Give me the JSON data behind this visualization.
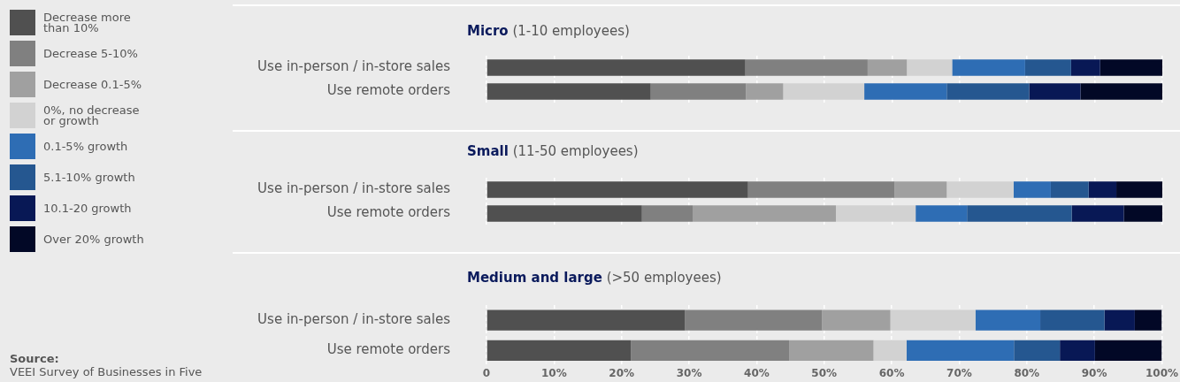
{
  "chart_data": [
    {
      "type": "bar",
      "orientation": "horizontal",
      "stacked": true,
      "title": "Micro",
      "subtitle": "(1-10 employees)",
      "categories": [
        "Use in-person / in-store sales",
        "Use remote orders"
      ],
      "series": [
        {
          "name": "Decrease more than 10%",
          "color": "#505050",
          "values": [
            38.3,
            24.3
          ]
        },
        {
          "name": "Decrease 5-10%",
          "color": "#808080",
          "values": [
            18.1,
            14.1
          ]
        },
        {
          "name": "Decrease 0.1-5%",
          "color": "#a0a0a0",
          "values": [
            5.8,
            5.5
          ]
        },
        {
          "name": "0%, no decrease or growth",
          "color": "#d2d2d2",
          "values": [
            6.7,
            12.0
          ]
        },
        {
          "name": "0.1-5% growth",
          "color": "#2e6db4",
          "values": [
            10.8,
            12.2
          ]
        },
        {
          "name": "5.1-10% growth",
          "color": "#255790",
          "values": [
            6.8,
            12.2
          ]
        },
        {
          "name": "10.1-20 growth",
          "color": "#081855",
          "values": [
            4.3,
            7.6
          ]
        },
        {
          "name": "Over 20% growth",
          "color": "#020826",
          "values": [
            9.2,
            12.1
          ]
        }
      ],
      "xlim": [
        0,
        100
      ],
      "xticks": [
        {
          "value": 0,
          "label": null
        },
        {
          "value": 10,
          "label": null
        },
        {
          "value": 20,
          "label": null
        },
        {
          "value": 30,
          "label": null
        },
        {
          "value": 40,
          "label": null
        },
        {
          "value": 50,
          "label": null
        },
        {
          "value": 60,
          "label": null
        },
        {
          "value": 70,
          "label": null
        },
        {
          "value": 80,
          "label": null
        },
        {
          "value": 90,
          "label": null
        },
        {
          "value": 100,
          "label": null
        }
      ],
      "grid": "x",
      "legend": "left",
      "tick_labels": "y",
      "annotations": [
        "Source:",
        "VEEI Survey of Businesses in Five"
      ]
    },
    {
      "type": "bar",
      "orientation": "horizontal",
      "stacked": true,
      "title": "Small",
      "subtitle": "(11-50 employees)",
      "categories": [
        "Use in-person / in-store sales",
        "Use remote orders"
      ],
      "series": [
        {
          "color": "#505050",
          "values": [
            38.7,
            23.0
          ]
        },
        {
          "color": "#808080",
          "values": [
            21.7,
            7.5
          ]
        },
        {
          "color": "#a0a0a0",
          "values": [
            7.7,
            21.2
          ]
        },
        {
          "color": "#d2d2d2",
          "values": [
            9.9,
            11.8
          ]
        },
        {
          "color": "#2e6db4",
          "values": [
            5.5,
            7.6
          ]
        },
        {
          "color": "#255790",
          "values": [
            5.6,
            15.5
          ]
        },
        {
          "color": "#081855",
          "values": [
            4.1,
            7.7
          ]
        },
        {
          "color": "#020826",
          "values": [
            6.8,
            5.7
          ]
        }
      ],
      "xlim": [
        0,
        100
      ],
      "xticks": [
        {
          "value": 0,
          "label": null
        },
        {
          "value": 10,
          "label": null
        },
        {
          "value": 20,
          "label": null
        },
        {
          "value": 30,
          "label": null
        },
        {
          "value": 40,
          "label": null
        },
        {
          "value": 50,
          "label": null
        },
        {
          "value": 60,
          "label": null
        },
        {
          "value": 70,
          "label": null
        },
        {
          "value": 80,
          "label": null
        },
        {
          "value": 90,
          "label": null
        },
        {
          "value": 100,
          "label": null
        }
      ],
      "grid": "x",
      "tick_labels": "y"
    },
    {
      "type": "bar",
      "orientation": "horizontal",
      "stacked": true,
      "title": "Medium and large",
      "subtitle": "(>50 employees)",
      "categories": [
        "Use in-person / in-store sales",
        "Use remote orders"
      ],
      "series": [
        {
          "color": "#505050",
          "values": [
            29.4,
            21.4
          ]
        },
        {
          "color": "#808080",
          "values": [
            20.3,
            23.4
          ]
        },
        {
          "color": "#a0a0a0",
          "values": [
            10.1,
            12.5
          ]
        },
        {
          "color": "#d2d2d2",
          "values": [
            12.6,
            4.9
          ]
        },
        {
          "color": "#2e6db4",
          "values": [
            9.6,
            15.9
          ]
        },
        {
          "color": "#255790",
          "values": [
            9.5,
            6.8
          ]
        },
        {
          "color": "#081855",
          "values": [
            4.5,
            5.2
          ]
        },
        {
          "color": "#020826",
          "values": [
            4.0,
            9.9
          ]
        }
      ],
      "xlim": [
        0,
        100
      ],
      "xticks": [
        0,
        {
          "value": 10,
          "label": "10%"
        },
        {
          "value": 20,
          "label": "20%"
        },
        {
          "value": 30,
          "label": "30%"
        },
        {
          "value": 40,
          "label": "40%"
        },
        {
          "value": 50,
          "label": "50%"
        },
        {
          "value": 60,
          "label": "60%"
        },
        {
          "value": 70,
          "label": "70%"
        },
        {
          "value": 80,
          "label": "80%"
        },
        {
          "value": 90,
          "label": "90%"
        },
        {
          "value": 100,
          "label": "100%"
        }
      ],
      "grid": "x"
    }
  ]
}
